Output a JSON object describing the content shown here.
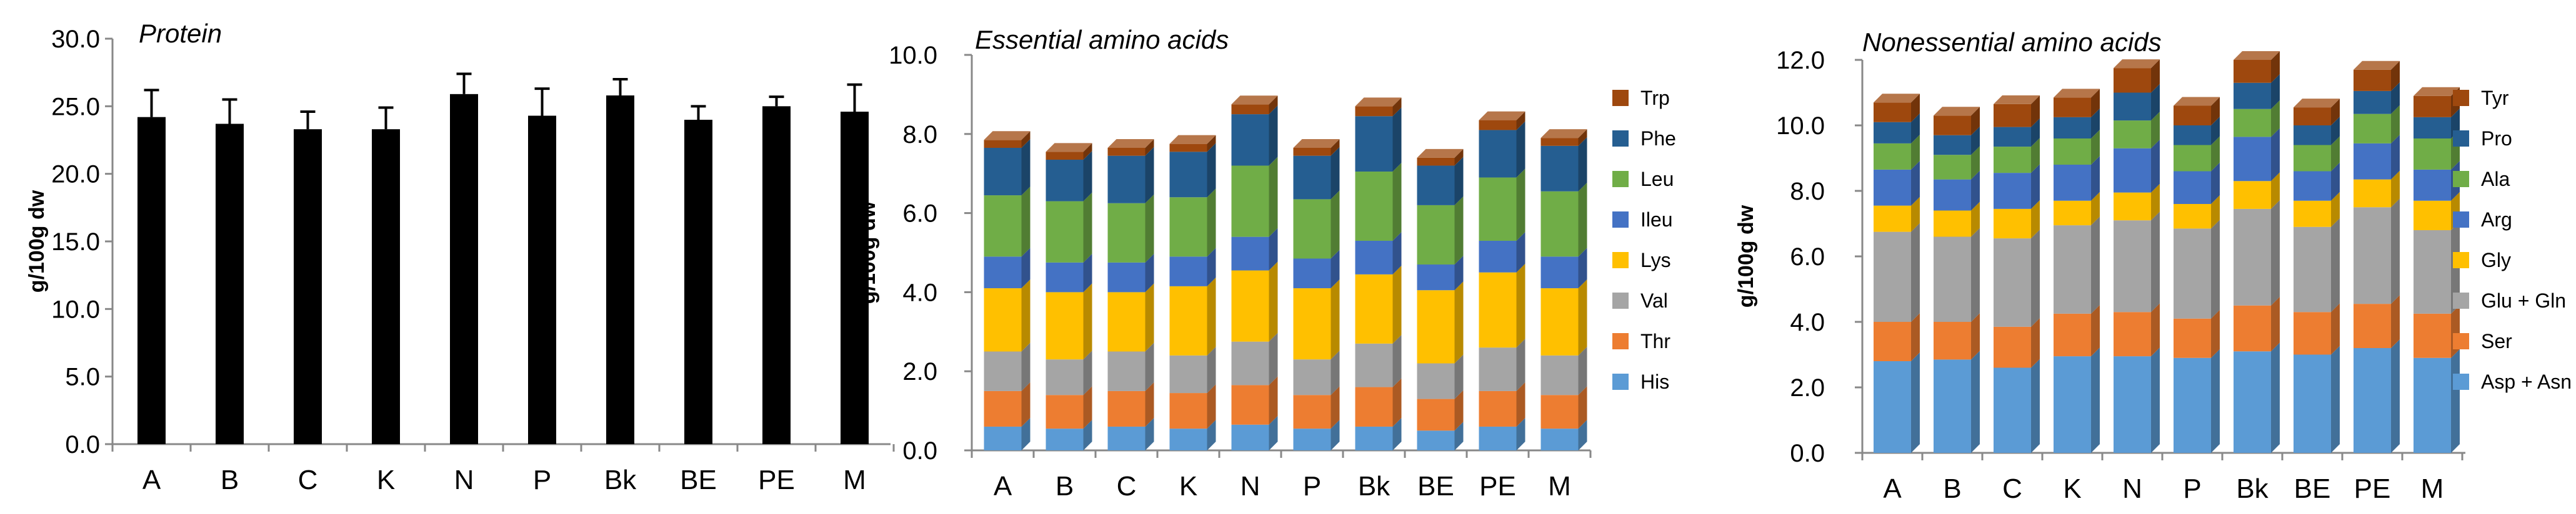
{
  "chart_data": [
    {
      "type": "bar",
      "title": "Protein",
      "categories": [
        "A",
        "B",
        "C",
        "K",
        "N",
        "P",
        "Bk",
        "BE",
        "PE",
        "M"
      ],
      "values": [
        24.2,
        23.7,
        23.3,
        23.3,
        25.9,
        24.3,
        25.8,
        24.0,
        25.0,
        24.6
      ],
      "errors": [
        2.0,
        1.8,
        1.3,
        1.6,
        1.5,
        2.0,
        1.2,
        1.0,
        0.7,
        2.0
      ],
      "ylabel": "g/100g dw",
      "xlabel": "",
      "ylim": [
        0,
        30
      ],
      "yticks": [
        "0.0",
        "5.0",
        "10.0",
        "15.0",
        "20.0",
        "25.0",
        "30.0"
      ],
      "color": "#000000"
    },
    {
      "type": "bar",
      "stacked": true,
      "title": "Essential amino acids",
      "categories": [
        "A",
        "B",
        "C",
        "K",
        "N",
        "P",
        "Bk",
        "BE",
        "PE",
        "M"
      ],
      "ylabel": "g/100g dw",
      "xlabel": "",
      "ylim": [
        0,
        10
      ],
      "yticks": [
        "0.0",
        "2.0",
        "4.0",
        "6.0",
        "8.0",
        "10.0"
      ],
      "legend": "right",
      "series": [
        {
          "name": "His",
          "color": "#5B9BD5",
          "values": [
            0.6,
            0.55,
            0.6,
            0.55,
            0.65,
            0.55,
            0.6,
            0.5,
            0.6,
            0.55
          ]
        },
        {
          "name": "Thr",
          "color": "#ED7D31",
          "values": [
            0.9,
            0.85,
            0.9,
            0.9,
            1.0,
            0.85,
            1.0,
            0.8,
            0.9,
            0.85
          ]
        },
        {
          "name": "Val",
          "color": "#A5A5A5",
          "values": [
            1.0,
            0.9,
            1.0,
            0.95,
            1.1,
            0.9,
            1.1,
            0.9,
            1.1,
            1.0
          ]
        },
        {
          "name": "Lys",
          "color": "#FFC000",
          "values": [
            1.6,
            1.7,
            1.5,
            1.75,
            1.8,
            1.8,
            1.75,
            1.85,
            1.9,
            1.7
          ]
        },
        {
          "name": "Ileu",
          "color": "#4472C4",
          "values": [
            0.8,
            0.75,
            0.75,
            0.75,
            0.85,
            0.75,
            0.85,
            0.65,
            0.8,
            0.8
          ]
        },
        {
          "name": "Leu",
          "color": "#70AD47",
          "values": [
            1.55,
            1.55,
            1.5,
            1.5,
            1.8,
            1.5,
            1.75,
            1.5,
            1.6,
            1.65
          ]
        },
        {
          "name": "Phe",
          "color": "#255E91",
          "values": [
            1.2,
            1.05,
            1.2,
            1.15,
            1.3,
            1.1,
            1.4,
            1.0,
            1.2,
            1.15
          ]
        },
        {
          "name": "Trp",
          "color": "#9E480E",
          "values": [
            0.2,
            0.2,
            0.2,
            0.2,
            0.25,
            0.2,
            0.25,
            0.2,
            0.25,
            0.2
          ]
        }
      ]
    },
    {
      "type": "bar",
      "stacked": true,
      "title": "Nonessential amino acids",
      "categories": [
        "A",
        "B",
        "C",
        "K",
        "N",
        "P",
        "Bk",
        "BE",
        "PE",
        "M"
      ],
      "ylabel": "g/100g dw",
      "xlabel": "",
      "ylim": [
        0,
        12
      ],
      "yticks": [
        "0.0",
        "2.0",
        "4.0",
        "6.0",
        "8.0",
        "10.0",
        "12.0"
      ],
      "legend": "right",
      "series": [
        {
          "name": "Asp + Asn",
          "color": "#5B9BD5",
          "values": [
            2.8,
            2.85,
            2.6,
            2.95,
            2.95,
            2.9,
            3.1,
            3.0,
            3.2,
            2.9
          ]
        },
        {
          "name": "Ser",
          "color": "#ED7D31",
          "values": [
            1.2,
            1.15,
            1.25,
            1.3,
            1.35,
            1.2,
            1.4,
            1.3,
            1.35,
            1.35
          ]
        },
        {
          "name": "Glu + Gln",
          "color": "#A5A5A5",
          "values": [
            2.75,
            2.6,
            2.7,
            2.7,
            2.8,
            2.75,
            2.95,
            2.6,
            2.95,
            2.55
          ]
        },
        {
          "name": "Gly",
          "color": "#FFC000",
          "values": [
            0.8,
            0.8,
            0.9,
            0.75,
            0.85,
            0.75,
            0.85,
            0.8,
            0.85,
            0.9
          ]
        },
        {
          "name": "Arg",
          "color": "#4472C4",
          "values": [
            1.1,
            0.95,
            1.1,
            1.1,
            1.35,
            1.0,
            1.35,
            0.9,
            1.1,
            0.95
          ]
        },
        {
          "name": "Ala",
          "color": "#70AD47",
          "values": [
            0.8,
            0.75,
            0.8,
            0.8,
            0.85,
            0.8,
            0.85,
            0.8,
            0.9,
            0.95
          ]
        },
        {
          "name": "Pro",
          "color": "#255E91",
          "values": [
            0.65,
            0.6,
            0.6,
            0.65,
            0.85,
            0.6,
            0.8,
            0.6,
            0.7,
            0.65
          ]
        },
        {
          "name": "Tyr",
          "color": "#9E480E",
          "values": [
            0.6,
            0.6,
            0.7,
            0.6,
            0.75,
            0.6,
            0.7,
            0.55,
            0.65,
            0.65
          ]
        }
      ]
    }
  ]
}
